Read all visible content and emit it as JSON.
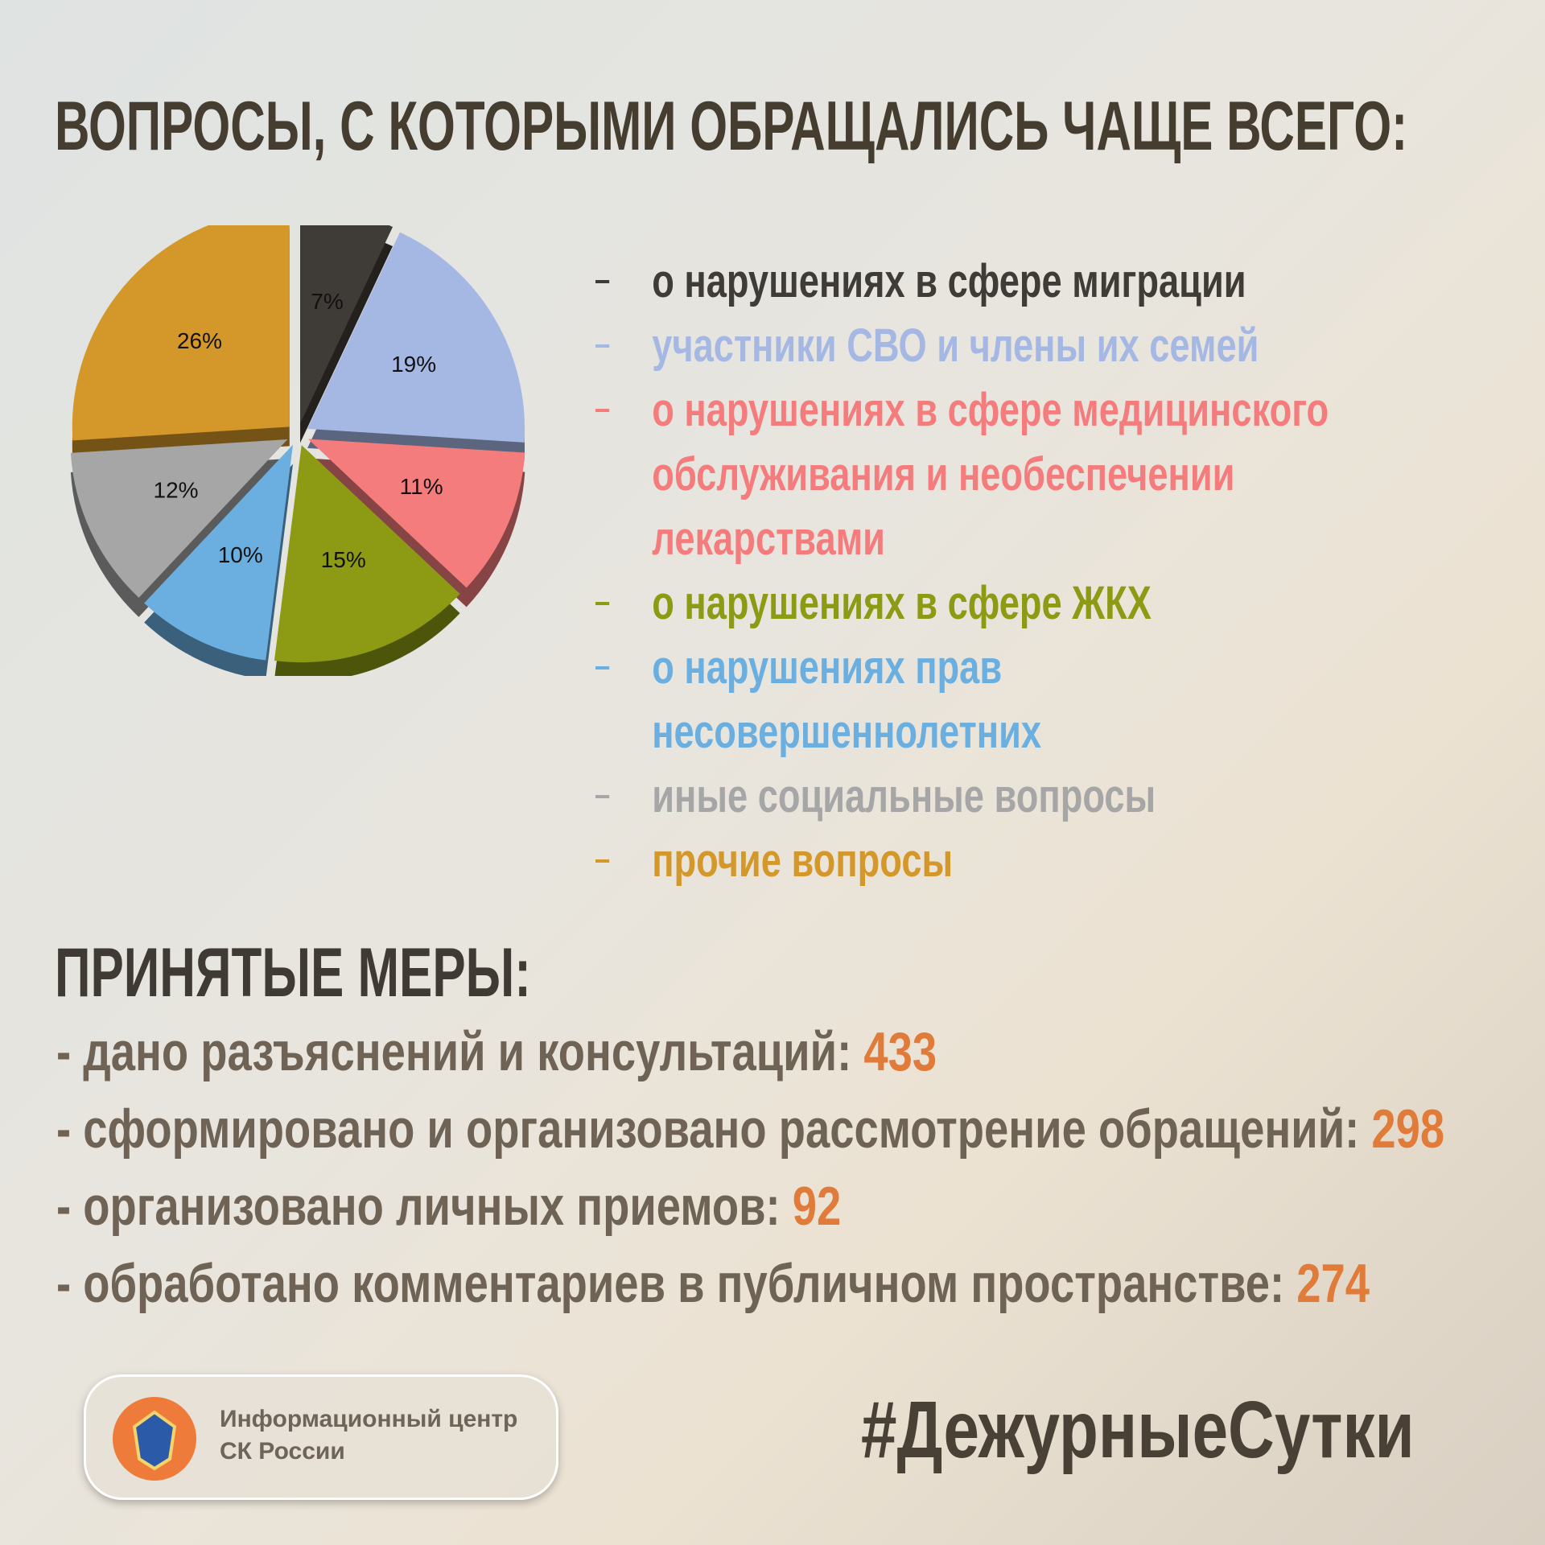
{
  "chart_data": {
    "type": "pie",
    "title": "ВОПРОСЫ, С КОТОРЫМИ ОБРАЩАЛИСЬ ЧАЩЕ ВСЕГО:",
    "categories": [
      "о нарушениях в сфере миграции",
      "участники СВО и члены их семей",
      "о нарушениях в сфере медицинского обслуживания и необеспечении лекарствами",
      "о нарушениях в сфере ЖКХ",
      "о нарушениях прав несовершеннолетних",
      "иные социальные вопросы",
      "прочие вопросы"
    ],
    "values": [
      7,
      19,
      11,
      15,
      10,
      12,
      26
    ],
    "value_labels": [
      "7%",
      "19%",
      "11%",
      "15%",
      "10%",
      "12%",
      "26%"
    ],
    "colors": [
      "#3f3b36",
      "#a5b8e3",
      "#f47c7c",
      "#8c9a14",
      "#6aafe0",
      "#a6a6a6",
      "#d4972a"
    ]
  },
  "measures": {
    "title": "ПРИНЯТЫЕ МЕРЫ:",
    "items": [
      {
        "label": "- дано разъяснений и консультаций:",
        "value": 433
      },
      {
        "label": "- сформировано и организовано рассмотрение обращений:",
        "value": 298
      },
      {
        "label": "- организовано личных приемов:",
        "value": 92
      },
      {
        "label": "- обработано комментариев в публичном пространстве:",
        "value": 274
      }
    ]
  },
  "footer": {
    "logo_line1": "Информационный центр",
    "logo_line2": "СК России",
    "hashtag": "#ДежурныеСутки"
  }
}
